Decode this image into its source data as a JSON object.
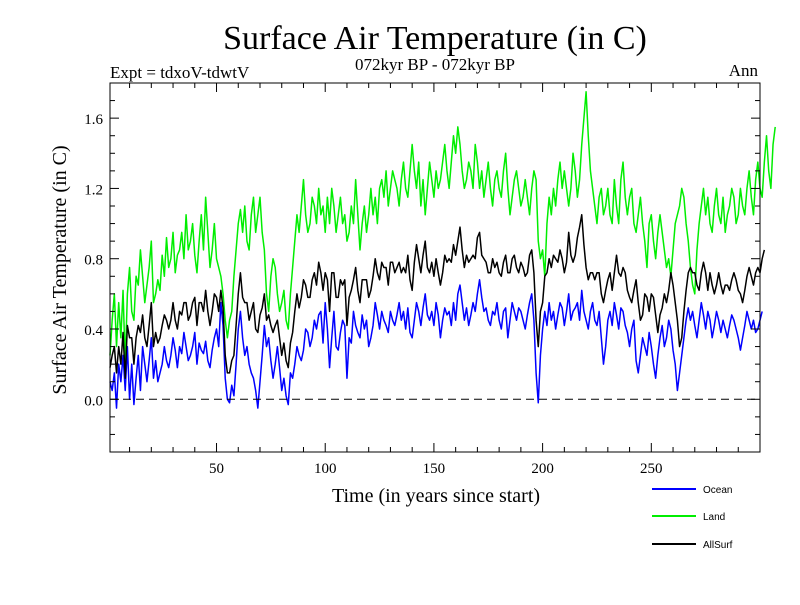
{
  "title": "Surface Air Temperature (in C)",
  "subtitle_left": "Expt = tdxoV-tdwtV",
  "subtitle_center": "072kyr BP - 072kyr BP",
  "subtitle_right": "Ann",
  "chart_data": {
    "type": "line",
    "xlabel": "Time (in years since start)",
    "ylabel": "Surface Air Temperature (in C)",
    "xlim": [
      1,
      300
    ],
    "ylim": [
      -0.3,
      1.8
    ],
    "xticks": [
      50,
      100,
      150,
      200,
      250
    ],
    "yticks": [
      0.0,
      0.4,
      0.8,
      1.2,
      1.6
    ],
    "ytick_labels": [
      "0.0",
      "0.4",
      "0.8",
      "1.2",
      "1.6"
    ],
    "xtick_labels": [
      "50",
      "100",
      "150",
      "200",
      "250"
    ],
    "reference_line": {
      "y": 0.0,
      "style": "dashed"
    },
    "grid": false,
    "legend_position": "bottom-right, outside plot",
    "x": {
      "start": 1,
      "end": 300,
      "step": 1
    },
    "series": [
      {
        "name": "Ocean",
        "color": "#0000ff",
        "values": [
          0.1,
          0.05,
          0.15,
          -0.05,
          0.2,
          0.1,
          0.25,
          0.05,
          0.3,
          0.0,
          0.2,
          -0.03,
          0.12,
          0.25,
          0.05,
          0.3,
          0.2,
          0.1,
          0.22,
          0.35,
          0.12,
          0.22,
          0.1,
          0.15,
          0.2,
          0.3,
          0.22,
          0.18,
          0.25,
          0.35,
          0.28,
          0.18,
          0.3,
          0.26,
          0.38,
          0.3,
          0.22,
          0.25,
          0.3,
          0.38,
          0.2,
          0.32,
          0.28,
          0.26,
          0.33,
          0.22,
          0.18,
          0.28,
          0.35,
          0.4,
          0.3,
          0.55,
          0.42,
          0.12,
          0.0,
          -0.02,
          0.08,
          0.02,
          0.2,
          0.4,
          0.5,
          0.35,
          0.25,
          0.3,
          0.2,
          0.15,
          0.12,
          0.05,
          -0.05,
          0.1,
          0.25,
          0.42,
          0.3,
          0.35,
          0.22,
          0.12,
          0.2,
          0.3,
          0.18,
          0.05,
          0.12,
          0.02,
          -0.03,
          0.15,
          0.12,
          0.2,
          0.3,
          0.25,
          0.22,
          0.28,
          0.4,
          0.38,
          0.3,
          0.35,
          0.45,
          0.4,
          0.48,
          0.5,
          0.32,
          0.55,
          0.4,
          0.18,
          0.35,
          0.5,
          0.3,
          0.28,
          0.38,
          0.45,
          0.42,
          0.12,
          0.35,
          0.32,
          0.5,
          0.42,
          0.38,
          0.35,
          0.48,
          0.4,
          0.45,
          0.3,
          0.35,
          0.42,
          0.55,
          0.48,
          0.4,
          0.5,
          0.45,
          0.42,
          0.38,
          0.5,
          0.45,
          0.42,
          0.48,
          0.55,
          0.45,
          0.5,
          0.4,
          0.52,
          0.38,
          0.35,
          0.45,
          0.55,
          0.5,
          0.42,
          0.52,
          0.6,
          0.48,
          0.45,
          0.5,
          0.42,
          0.55,
          0.48,
          0.35,
          0.45,
          0.52,
          0.48,
          0.5,
          0.42,
          0.55,
          0.45,
          0.6,
          0.65,
          0.55,
          0.45,
          0.52,
          0.42,
          0.48,
          0.55,
          0.5,
          0.6,
          0.68,
          0.58,
          0.5,
          0.52,
          0.45,
          0.42,
          0.5,
          0.48,
          0.55,
          0.45,
          0.4,
          0.5,
          0.52,
          0.35,
          0.45,
          0.55,
          0.5,
          0.45,
          0.52,
          0.5,
          0.45,
          0.4,
          0.48,
          0.55,
          0.6,
          0.45,
          0.15,
          -0.02,
          0.25,
          0.4,
          0.5,
          0.42,
          0.55,
          0.45,
          0.5,
          0.4,
          0.48,
          0.55,
          0.52,
          0.42,
          0.5,
          0.6,
          0.45,
          0.5,
          0.52,
          0.55,
          0.45,
          0.62,
          0.5,
          0.45,
          0.4,
          0.5,
          0.55,
          0.45,
          0.42,
          0.5,
          0.35,
          0.2,
          0.3,
          0.45,
          0.5,
          0.42,
          0.55,
          0.48,
          0.4,
          0.52,
          0.5,
          0.42,
          0.38,
          0.3,
          0.4,
          0.45,
          0.22,
          0.15,
          0.25,
          0.35,
          0.3,
          0.25,
          0.38,
          0.3,
          0.2,
          0.12,
          0.25,
          0.35,
          0.42,
          0.3,
          0.35,
          0.45,
          0.4,
          0.28,
          0.2,
          0.05,
          0.15,
          0.25,
          0.35,
          0.45,
          0.52,
          0.45,
          0.5,
          0.42,
          0.35,
          0.45,
          0.55,
          0.48,
          0.4,
          0.5,
          0.45,
          0.35,
          0.42,
          0.5,
          0.45,
          0.38,
          0.45,
          0.4,
          0.35,
          0.42,
          0.48,
          0.45,
          0.4,
          0.35,
          0.28,
          0.35,
          0.42,
          0.5,
          0.45,
          0.4,
          0.45,
          0.38,
          0.4,
          0.45,
          0.5
        ]
      },
      {
        "name": "Land",
        "color": "#00ee00",
        "values": [
          0.25,
          0.45,
          0.6,
          0.3,
          0.55,
          0.35,
          0.62,
          0.2,
          0.6,
          0.75,
          0.5,
          0.45,
          0.7,
          0.65,
          0.85,
          0.7,
          0.55,
          0.65,
          0.75,
          0.9,
          0.55,
          0.6,
          0.68,
          0.62,
          0.82,
          0.7,
          0.92,
          0.75,
          0.8,
          0.95,
          0.72,
          0.82,
          0.85,
          0.95,
          0.8,
          1.05,
          0.85,
          0.9,
          1.0,
          0.82,
          0.72,
          0.9,
          1.05,
          0.85,
          1.15,
          0.95,
          0.75,
          0.85,
          1.0,
          0.8,
          0.75,
          0.7,
          0.6,
          0.45,
          0.35,
          0.45,
          0.5,
          0.7,
          0.85,
          1.0,
          1.08,
          0.95,
          1.1,
          0.9,
          0.85,
          1.05,
          1.15,
          0.95,
          1.05,
          1.15,
          0.95,
          0.85,
          0.6,
          0.5,
          0.7,
          0.8,
          0.75,
          0.6,
          0.5,
          0.55,
          0.62,
          0.45,
          0.4,
          0.6,
          0.75,
          0.9,
          1.05,
          0.95,
          1.1,
          1.25,
          1.05,
          0.95,
          1.0,
          1.15,
          1.1,
          1.0,
          1.2,
          1.05,
          1.1,
          0.95,
          1.15,
          1.0,
          1.2,
          1.1,
          0.95,
          1.05,
          1.15,
          1.0,
          1.05,
          0.9,
          0.95,
          1.1,
          1.0,
          1.25,
          1.05,
          0.85,
          1.0,
          1.1,
          0.95,
          1.05,
          1.2,
          1.05,
          1.15,
          1.0,
          1.2,
          1.25,
          1.15,
          1.3,
          1.1,
          1.2,
          1.3,
          1.25,
          1.2,
          1.1,
          1.25,
          1.35,
          1.2,
          1.15,
          1.3,
          1.45,
          1.3,
          1.2,
          1.35,
          1.1,
          1.25,
          1.05,
          1.2,
          1.35,
          1.25,
          1.15,
          1.3,
          1.2,
          1.25,
          1.35,
          1.45,
          1.3,
          1.2,
          1.35,
          1.5,
          1.4,
          1.55,
          1.45,
          1.3,
          1.2,
          1.25,
          1.35,
          1.3,
          1.2,
          1.45,
          1.35,
          1.2,
          1.3,
          1.15,
          1.25,
          1.35,
          1.2,
          1.1,
          1.25,
          1.3,
          1.2,
          1.15,
          1.3,
          1.4,
          1.2,
          1.05,
          1.15,
          1.25,
          1.3,
          1.2,
          1.1,
          1.15,
          1.25,
          1.15,
          1.05,
          1.2,
          1.3,
          1.25,
          0.9,
          0.8,
          0.85,
          0.7,
          1.0,
          1.15,
          1.05,
          1.2,
          1.1,
          1.25,
          1.35,
          1.2,
          1.3,
          1.2,
          1.1,
          1.2,
          1.4,
          1.3,
          1.15,
          1.25,
          1.45,
          1.6,
          1.75,
          1.5,
          1.3,
          1.2,
          1.1,
          1.0,
          1.15,
          1.2,
          1.05,
          1.1,
          1.2,
          1.05,
          1.0,
          1.25,
          1.1,
          1.0,
          1.25,
          1.35,
          1.15,
          1.05,
          1.15,
          1.2,
          1.0,
          0.95,
          1.05,
          1.15,
          1.0,
          0.9,
          0.75,
          1.0,
          1.05,
          0.9,
          0.8,
          0.95,
          1.05,
          0.95,
          0.85,
          0.75,
          0.8,
          0.7,
          0.85,
          1.0,
          1.05,
          1.1,
          1.2,
          1.15,
          1.0,
          0.9,
          0.75,
          0.65,
          0.6,
          0.85,
          1.0,
          1.1,
          1.2,
          1.05,
          1.15,
          1.0,
          0.95,
          1.1,
          1.2,
          1.05,
          1.0,
          1.15,
          0.95,
          1.05,
          1.1,
          1.2,
          1.15,
          1.0,
          1.05,
          1.2,
          1.1,
          1.05,
          1.2,
          1.3,
          1.15,
          1.05,
          1.25,
          1.35,
          1.2,
          1.15,
          1.35,
          1.5,
          1.3,
          1.2,
          1.45,
          1.55
        ]
      },
      {
        "name": "AllSurf",
        "color": "#000000",
        "values": [
          0.18,
          0.25,
          0.3,
          0.15,
          0.3,
          0.2,
          0.38,
          0.12,
          0.42,
          0.35,
          0.35,
          0.2,
          0.35,
          0.42,
          0.38,
          0.48,
          0.35,
          0.3,
          0.42,
          0.55,
          0.3,
          0.38,
          0.32,
          0.35,
          0.42,
          0.48,
          0.45,
          0.4,
          0.45,
          0.55,
          0.45,
          0.4,
          0.5,
          0.48,
          0.55,
          0.55,
          0.45,
          0.48,
          0.55,
          0.58,
          0.42,
          0.55,
          0.55,
          0.5,
          0.62,
          0.5,
          0.42,
          0.5,
          0.6,
          0.58,
          0.5,
          0.62,
          0.52,
          0.25,
          0.15,
          0.15,
          0.22,
          0.25,
          0.42,
          0.6,
          0.72,
          0.58,
          0.55,
          0.55,
          0.45,
          0.5,
          0.55,
          0.4,
          0.38,
          0.48,
          0.52,
          0.6,
          0.45,
          0.48,
          0.42,
          0.38,
          0.42,
          0.45,
          0.35,
          0.25,
          0.32,
          0.22,
          0.18,
          0.32,
          0.38,
          0.5,
          0.6,
          0.52,
          0.58,
          0.68,
          0.65,
          0.58,
          0.58,
          0.68,
          0.72,
          0.65,
          0.78,
          0.72,
          0.62,
          0.72,
          0.68,
          0.5,
          0.72,
          0.72,
          0.58,
          0.58,
          0.68,
          0.65,
          0.68,
          0.42,
          0.58,
          0.62,
          0.68,
          0.75,
          0.62,
          0.55,
          0.68,
          0.68,
          0.68,
          0.58,
          0.62,
          0.7,
          0.8,
          0.72,
          0.68,
          0.78,
          0.75,
          0.75,
          0.65,
          0.78,
          0.78,
          0.72,
          0.75,
          0.78,
          0.72,
          0.75,
          0.72,
          0.82,
          0.68,
          0.62,
          0.78,
          0.88,
          0.8,
          0.72,
          0.82,
          0.9,
          0.75,
          0.72,
          0.78,
          0.7,
          0.8,
          0.72,
          0.65,
          0.72,
          0.82,
          0.78,
          0.8,
          0.78,
          0.88,
          0.82,
          0.9,
          0.98,
          0.85,
          0.75,
          0.82,
          0.78,
          0.8,
          0.82,
          0.8,
          0.92,
          0.95,
          0.82,
          0.8,
          0.78,
          0.72,
          0.72,
          0.8,
          0.75,
          0.78,
          0.72,
          0.7,
          0.78,
          0.82,
          0.72,
          0.72,
          0.8,
          0.82,
          0.75,
          0.72,
          0.78,
          0.75,
          0.7,
          0.72,
          0.82,
          0.85,
          0.72,
          0.45,
          0.3,
          0.5,
          0.55,
          0.7,
          0.72,
          0.8,
          0.75,
          0.82,
          0.8,
          0.78,
          0.85,
          0.8,
          0.72,
          0.78,
          0.95,
          0.82,
          0.78,
          0.82,
          0.92,
          0.98,
          1.05,
          0.88,
          0.75,
          0.68,
          0.72,
          0.72,
          0.68,
          0.72,
          0.72,
          0.6,
          0.55,
          0.62,
          0.68,
          0.72,
          0.62,
          0.72,
          0.82,
          0.72,
          0.7,
          0.75,
          0.72,
          0.62,
          0.58,
          0.55,
          0.62,
          0.68,
          0.55,
          0.45,
          0.48,
          0.6,
          0.58,
          0.5,
          0.6,
          0.58,
          0.48,
          0.38,
          0.48,
          0.52,
          0.6,
          0.55,
          0.62,
          0.72,
          0.65,
          0.55,
          0.45,
          0.3,
          0.35,
          0.5,
          0.62,
          0.72,
          0.75,
          0.72,
          0.72,
          0.65,
          0.62,
          0.72,
          0.78,
          0.72,
          0.62,
          0.72,
          0.65,
          0.6,
          0.65,
          0.72,
          0.65,
          0.6,
          0.65,
          0.65,
          0.62,
          0.68,
          0.72,
          0.68,
          0.62,
          0.6,
          0.55,
          0.62,
          0.7,
          0.75,
          0.7,
          0.65,
          0.72,
          0.75,
          0.72,
          0.8,
          0.85
        ]
      }
    ]
  }
}
